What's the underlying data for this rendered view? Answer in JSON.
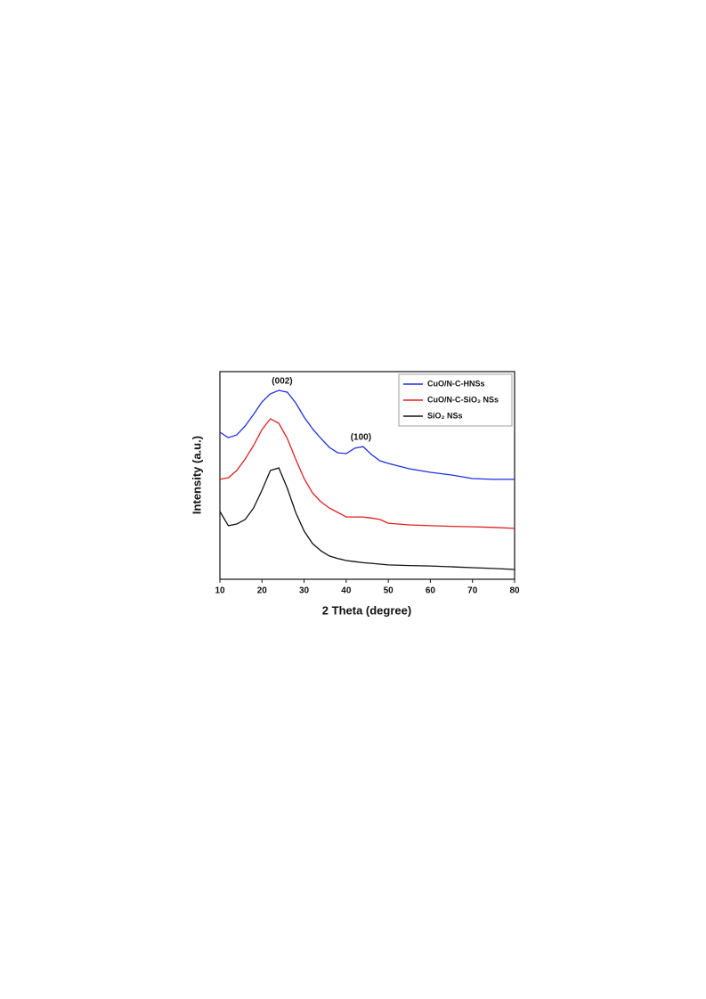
{
  "chart_data": {
    "type": "line",
    "x_label": "2 Theta (degree)",
    "y_label": "Intensity (a.u.)",
    "x": [
      10,
      12,
      14,
      16,
      18,
      20,
      22,
      24,
      26,
      28,
      30,
      32,
      34,
      36,
      38,
      40,
      42,
      44,
      46,
      48,
      50,
      55,
      60,
      65,
      70,
      75,
      80
    ],
    "series": [
      {
        "name": "CuO/N-C-HNSs",
        "color": "#1f2fe0",
        "values": [
          70.8,
          68.2,
          69.5,
          73.8,
          79.4,
          85.4,
          89.3,
          91.0,
          90.1,
          85.0,
          78.1,
          72.5,
          67.8,
          63.5,
          60.9,
          60.5,
          63.1,
          63.9,
          60.1,
          57.1,
          55.8,
          53.2,
          51.5,
          50.2,
          48.5,
          48.1,
          48.1
        ]
      },
      {
        "name": "CuO/N-C-SiO₂ NSs",
        "color": "#e0201f",
        "values": [
          48.1,
          48.9,
          52.4,
          57.9,
          64.4,
          72.1,
          77.3,
          75.1,
          67.8,
          57.9,
          48.5,
          41.6,
          37.3,
          34.3,
          32.2,
          30.0,
          30.0,
          30.0,
          29.5,
          28.8,
          27.0,
          26.2,
          25.8,
          25.5,
          25.3,
          25.0,
          24.5
        ]
      },
      {
        "name": "SiO₂ NSs",
        "color": "#111111",
        "values": [
          32.6,
          25.8,
          26.6,
          28.8,
          34.3,
          42.9,
          52.4,
          53.6,
          43.8,
          32.2,
          23.2,
          17.2,
          13.7,
          11.2,
          10.0,
          9.0,
          8.5,
          8.0,
          7.7,
          7.3,
          6.9,
          6.6,
          6.4,
          6.0,
          5.6,
          5.2,
          4.7
        ]
      }
    ],
    "annotations": [
      "(002)",
      "(100)"
    ],
    "xlim": [
      10,
      80
    ],
    "xticks": [
      10,
      20,
      30,
      40,
      50,
      60,
      70,
      80
    ],
    "ylim": [
      0,
      100
    ],
    "legend": "upper right"
  }
}
